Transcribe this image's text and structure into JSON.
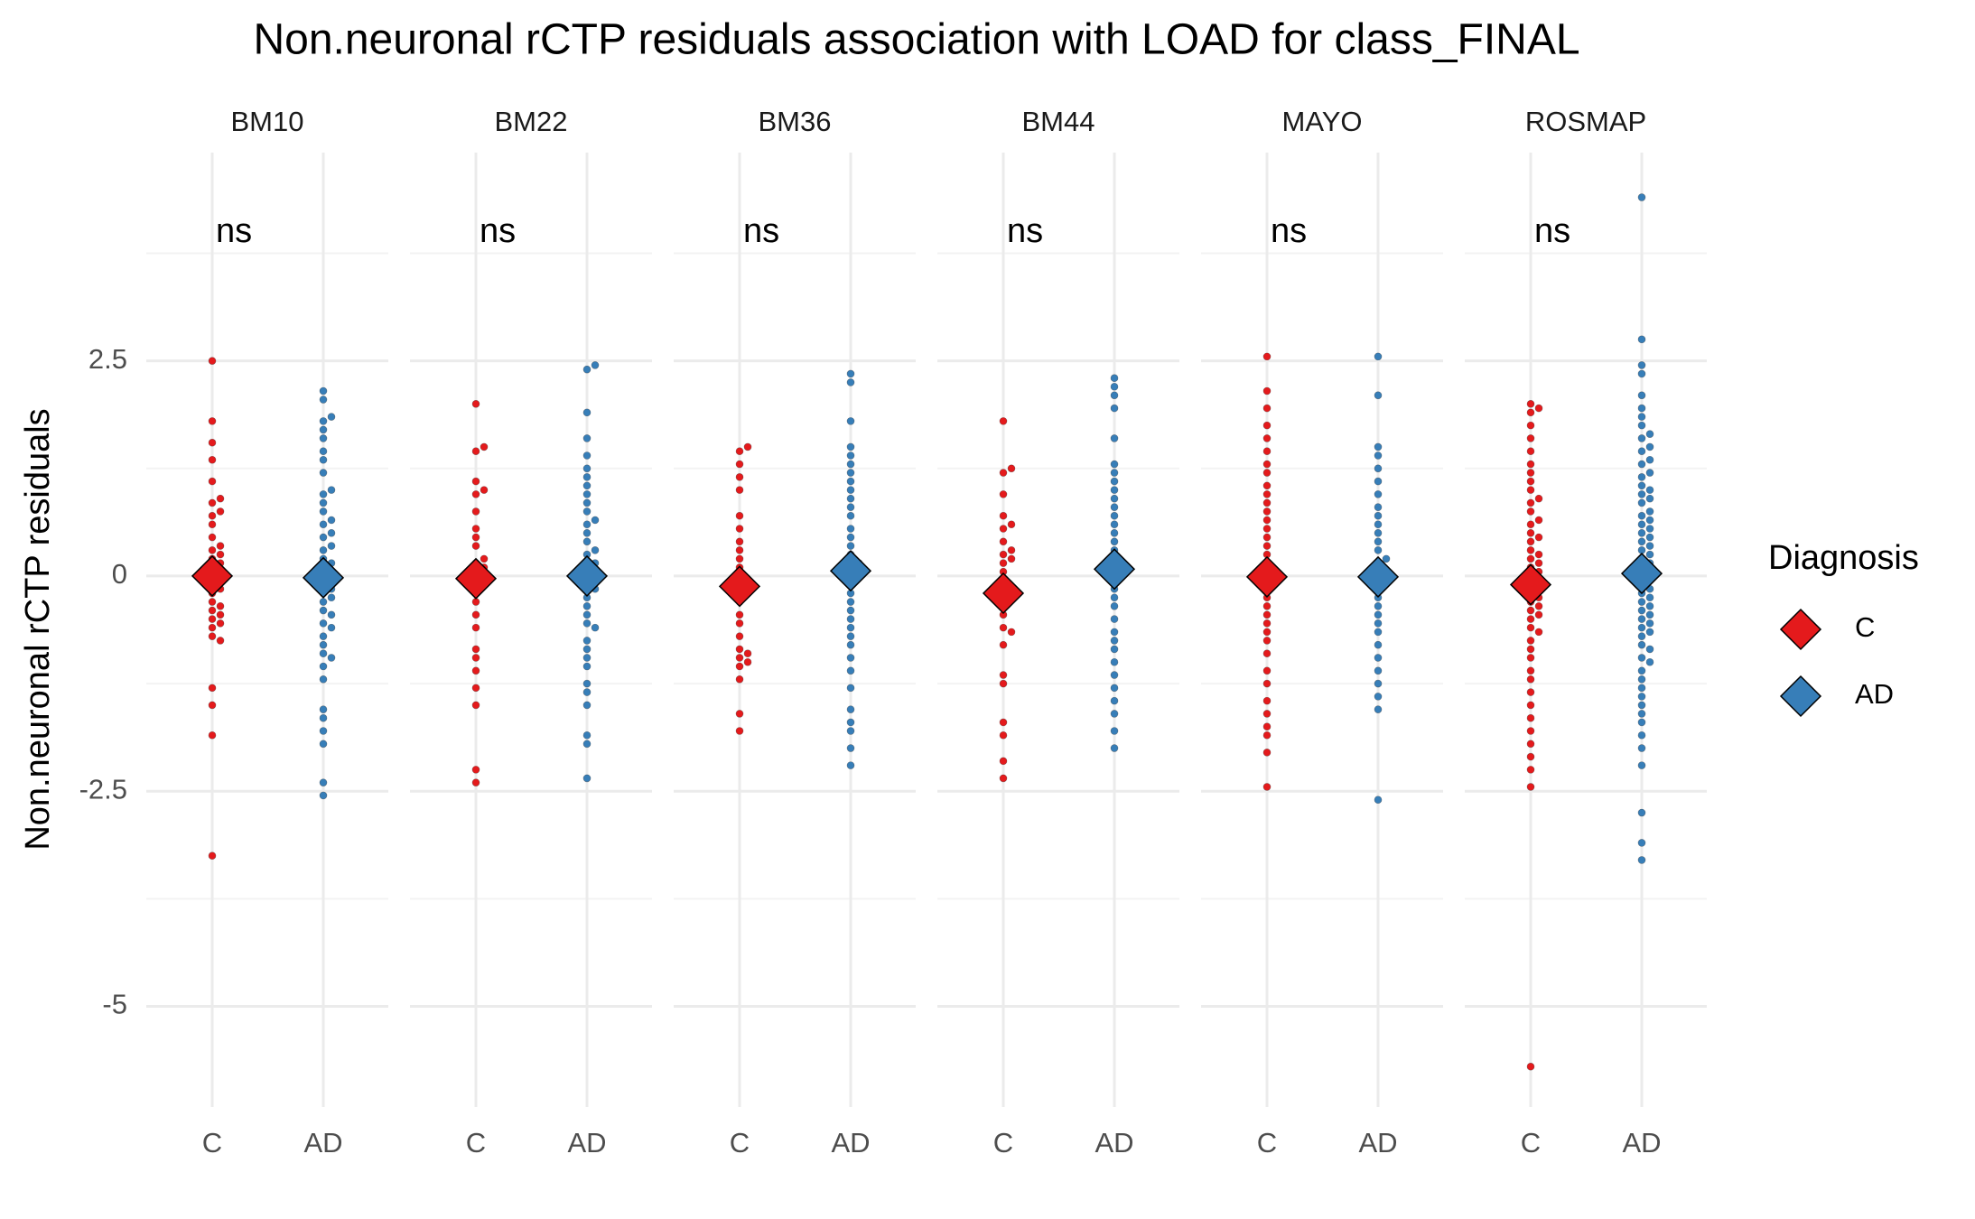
{
  "chart_data": {
    "type": "beeswarm",
    "title": "Non.neuronal rCTP residuals association with LOAD for class_FINAL",
    "y_label": "Non.neuronal rCTP residuals",
    "legend_title": "Diagnosis",
    "facets": [
      "BM10",
      "BM22",
      "BM36",
      "BM44",
      "MAYO",
      "ROSMAP"
    ],
    "categories": [
      "C",
      "AD"
    ],
    "annotations": [
      "ns",
      "ns",
      "ns",
      "ns",
      "ns",
      "ns"
    ],
    "ylim": [
      -6.17,
      4.92
    ],
    "yticks": [
      -5.0,
      -2.5,
      0.0,
      2.5
    ],
    "minor_grid": [
      -3.75,
      -1.25,
      1.25,
      3.75
    ],
    "grid": true,
    "series": [
      {
        "name": "C",
        "color": "#E41A1C",
        "means": [
          0.0,
          -0.03,
          -0.12,
          -0.2,
          -0.01,
          -0.1
        ],
        "values": [
          [
            2.5,
            1.8,
            1.55,
            1.35,
            1.1,
            0.9,
            0.85,
            0.75,
            0.7,
            0.6,
            0.45,
            0.35,
            0.3,
            0.25,
            0.2,
            0.15,
            0.1,
            0.05,
            0,
            -0.05,
            -0.1,
            -0.15,
            -0.2,
            -0.3,
            -0.35,
            -0.4,
            -0.45,
            -0.5,
            -0.55,
            -0.6,
            -0.7,
            -0.75,
            -1.3,
            -1.5,
            -1.85,
            -3.25
          ],
          [
            2.0,
            1.5,
            1.45,
            1.1,
            1.0,
            0.95,
            0.75,
            0.55,
            0.45,
            0.35,
            0.2,
            0.15,
            0.1,
            0.05,
            -0.05,
            -0.1,
            -0.2,
            -0.3,
            -0.45,
            -0.6,
            -0.85,
            -0.95,
            -1.1,
            -1.3,
            -1.5,
            -2.25,
            -2.4
          ],
          [
            1.5,
            1.45,
            1.3,
            1.15,
            1.0,
            0.7,
            0.55,
            0.4,
            0.3,
            0.2,
            0.1,
            -0.1,
            -0.2,
            -0.3,
            -0.45,
            -0.55,
            -0.7,
            -0.85,
            -0.9,
            -0.95,
            -1.0,
            -1.05,
            -1.2,
            -1.6,
            -1.8
          ],
          [
            1.8,
            1.25,
            1.2,
            0.95,
            0.7,
            0.6,
            0.55,
            0.4,
            0.3,
            0.25,
            0.2,
            0.15,
            0.05,
            -0.05,
            -0.15,
            -0.3,
            -0.45,
            -0.6,
            -0.65,
            -0.8,
            -1.15,
            -1.25,
            -1.7,
            -1.85,
            -2.15,
            -2.35
          ],
          [
            2.55,
            2.15,
            1.95,
            1.75,
            1.6,
            1.45,
            1.3,
            1.2,
            1.05,
            0.95,
            0.85,
            0.75,
            0.65,
            0.55,
            0.45,
            0.35,
            0.25,
            0.15,
            0.05,
            -0.05,
            -0.15,
            -0.25,
            -0.35,
            -0.45,
            -0.55,
            -0.65,
            -0.75,
            -0.9,
            -1.1,
            -1.25,
            -1.45,
            -1.6,
            -1.75,
            -1.85,
            -2.05,
            -2.45
          ],
          [
            2.0,
            1.95,
            1.9,
            1.75,
            1.6,
            1.45,
            1.3,
            1.2,
            1.1,
            1.0,
            0.9,
            0.85,
            0.75,
            0.65,
            0.6,
            0.5,
            0.45,
            0.4,
            0.3,
            0.25,
            0.2,
            0.15,
            0.1,
            0.05,
            0,
            -0.05,
            -0.1,
            -0.15,
            -0.2,
            -0.25,
            -0.3,
            -0.35,
            -0.4,
            -0.45,
            -0.5,
            -0.6,
            -0.65,
            -0.75,
            -0.85,
            -0.95,
            -1.1,
            -1.2,
            -1.35,
            -1.5,
            -1.65,
            -1.8,
            -1.95,
            -2.1,
            -2.25,
            -2.45,
            -5.7
          ]
        ]
      },
      {
        "name": "AD",
        "color": "#377EB8",
        "means": [
          -0.02,
          0.0,
          0.06,
          0.08,
          -0.01,
          0.03
        ],
        "values": [
          [
            2.15,
            2.05,
            1.85,
            1.8,
            1.7,
            1.6,
            1.45,
            1.35,
            1.2,
            1.0,
            0.95,
            0.85,
            0.75,
            0.65,
            0.6,
            0.5,
            0.45,
            0.35,
            0.3,
            0.2,
            0.15,
            0.1,
            0.05,
            0,
            -0.05,
            -0.1,
            -0.15,
            -0.2,
            -0.25,
            -0.3,
            -0.4,
            -0.45,
            -0.55,
            -0.6,
            -0.7,
            -0.8,
            -0.9,
            -0.95,
            -1.05,
            -1.2,
            -1.55,
            -1.65,
            -1.8,
            -1.95,
            -2.4,
            -2.55
          ],
          [
            2.45,
            2.4,
            1.9,
            1.6,
            1.4,
            1.25,
            1.15,
            1.05,
            0.95,
            0.85,
            0.75,
            0.65,
            0.6,
            0.5,
            0.4,
            0.3,
            0.25,
            0.15,
            0.1,
            0.05,
            0,
            -0.05,
            -0.1,
            -0.15,
            -0.25,
            -0.35,
            -0.45,
            -0.55,
            -0.6,
            -0.75,
            -0.85,
            -0.95,
            -1.05,
            -1.25,
            -1.35,
            -1.5,
            -1.85,
            -1.95,
            -2.35
          ],
          [
            2.35,
            2.25,
            1.8,
            1.5,
            1.4,
            1.3,
            1.2,
            1.1,
            1.0,
            0.9,
            0.8,
            0.7,
            0.55,
            0.45,
            0.35,
            0.25,
            0.15,
            0.1,
            0,
            -0.1,
            -0.2,
            -0.3,
            -0.4,
            -0.5,
            -0.6,
            -0.7,
            -0.8,
            -0.95,
            -1.1,
            -1.3,
            -1.55,
            -1.7,
            -1.8,
            -2.0,
            -2.2
          ],
          [
            2.3,
            2.2,
            2.1,
            1.95,
            1.6,
            1.3,
            1.2,
            1.1,
            1.0,
            0.9,
            0.8,
            0.7,
            0.6,
            0.5,
            0.4,
            0.3,
            0.2,
            0.1,
            0.05,
            -0.05,
            -0.15,
            -0.25,
            -0.35,
            -0.5,
            -0.65,
            -0.75,
            -0.85,
            -1.0,
            -1.15,
            -1.3,
            -1.45,
            -1.6,
            -1.8,
            -2.0
          ],
          [
            2.55,
            2.1,
            1.5,
            1.4,
            1.25,
            1.1,
            0.95,
            0.8,
            0.7,
            0.6,
            0.5,
            0.4,
            0.3,
            0.2,
            0.15,
            0.05,
            0,
            -0.05,
            -0.15,
            -0.25,
            -0.35,
            -0.45,
            -0.55,
            -0.65,
            -0.8,
            -0.95,
            -1.1,
            -1.25,
            -1.4,
            -1.55,
            -2.6
          ],
          [
            4.4,
            2.75,
            2.45,
            2.35,
            2.1,
            1.95,
            1.85,
            1.75,
            1.65,
            1.6,
            1.5,
            1.45,
            1.35,
            1.3,
            1.2,
            1.15,
            1.05,
            1.0,
            0.95,
            0.9,
            0.85,
            0.75,
            0.7,
            0.65,
            0.6,
            0.55,
            0.5,
            0.45,
            0.4,
            0.35,
            0.3,
            0.25,
            0.2,
            0.15,
            0.1,
            0.05,
            0,
            -0.05,
            -0.1,
            -0.15,
            -0.2,
            -0.25,
            -0.3,
            -0.35,
            -0.4,
            -0.45,
            -0.5,
            -0.55,
            -0.6,
            -0.65,
            -0.7,
            -0.8,
            -0.85,
            -0.95,
            -1.0,
            -1.1,
            -1.2,
            -1.3,
            -1.4,
            -1.5,
            -1.6,
            -1.7,
            -1.85,
            -2.0,
            -2.2,
            -2.75,
            -3.1,
            -3.3
          ]
        ]
      }
    ]
  }
}
